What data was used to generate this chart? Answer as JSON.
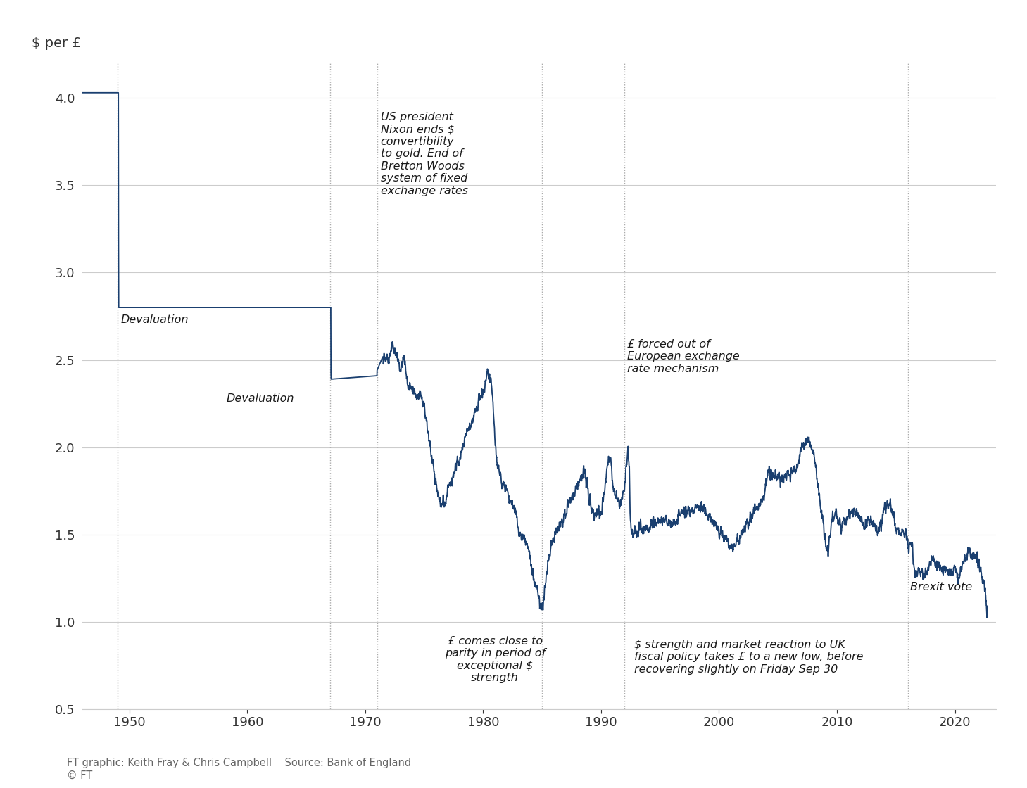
{
  "ylabel": "$ per £",
  "footer_line1": "FT graphic: Keith Fray & Chris Campbell    Source: Bank of England",
  "footer_line2": "© FT",
  "background_color": "#ffffff",
  "text_color": "#333333",
  "line_color": "#1a3f6f",
  "grid_color": "#cccccc",
  "annotation_color": "#1a1a1a",
  "vline_color": "#aaaaaa",
  "ylim": [
    0.5,
    4.2
  ],
  "xlim": [
    1946,
    2023.5
  ],
  "yticks": [
    0.5,
    1.0,
    1.5,
    2.0,
    2.5,
    3.0,
    3.5,
    4.0
  ],
  "xticks": [
    1950,
    1960,
    1970,
    1980,
    1990,
    2000,
    2010,
    2020
  ],
  "vlines": [
    1949,
    1967,
    1971,
    1985,
    1992,
    2016
  ]
}
